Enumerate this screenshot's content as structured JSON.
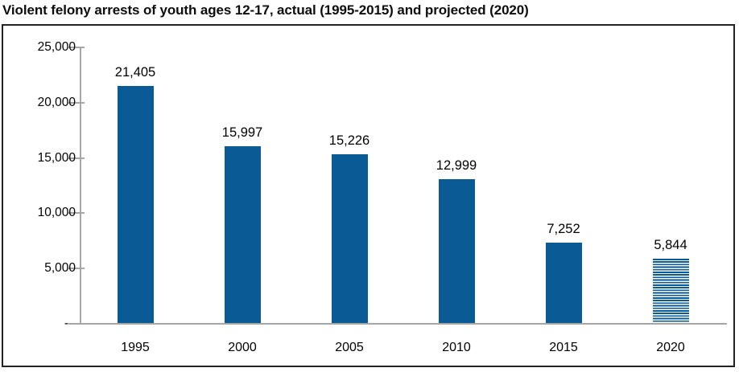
{
  "page": {
    "title": "Violent felony arrests of youth ages 12-17, actual (1995-2015) and projected (2020)"
  },
  "chart_data": {
    "type": "bar",
    "title": "Violent felony arrests of youth ages 12-17, actual (1995-2015) and projected (2020)",
    "categories": [
      "1995",
      "2000",
      "2005",
      "2010",
      "2015",
      "2020"
    ],
    "values": [
      21405,
      15997,
      15226,
      12999,
      7252,
      5844
    ],
    "value_labels": [
      "21,405",
      "15,997",
      "15,226",
      "12,999",
      "7,252",
      "5,844"
    ],
    "projected": [
      false,
      false,
      false,
      false,
      false,
      true
    ],
    "xlabel": "",
    "ylabel": "",
    "ylim": [
      0,
      25000
    ],
    "y_ticks": [
      25000,
      20000,
      15000,
      10000,
      5000,
      0
    ],
    "y_tick_labels": [
      "25,000",
      "20,000",
      "15,000",
      "10,000",
      "5,000",
      "-"
    ],
    "grid": false,
    "legend": "none",
    "bar_color": "#0a5a96",
    "projected_fill": "horizontal-stripes",
    "axis_color": "#a6a6a6",
    "frame_border_color": "#222222"
  }
}
